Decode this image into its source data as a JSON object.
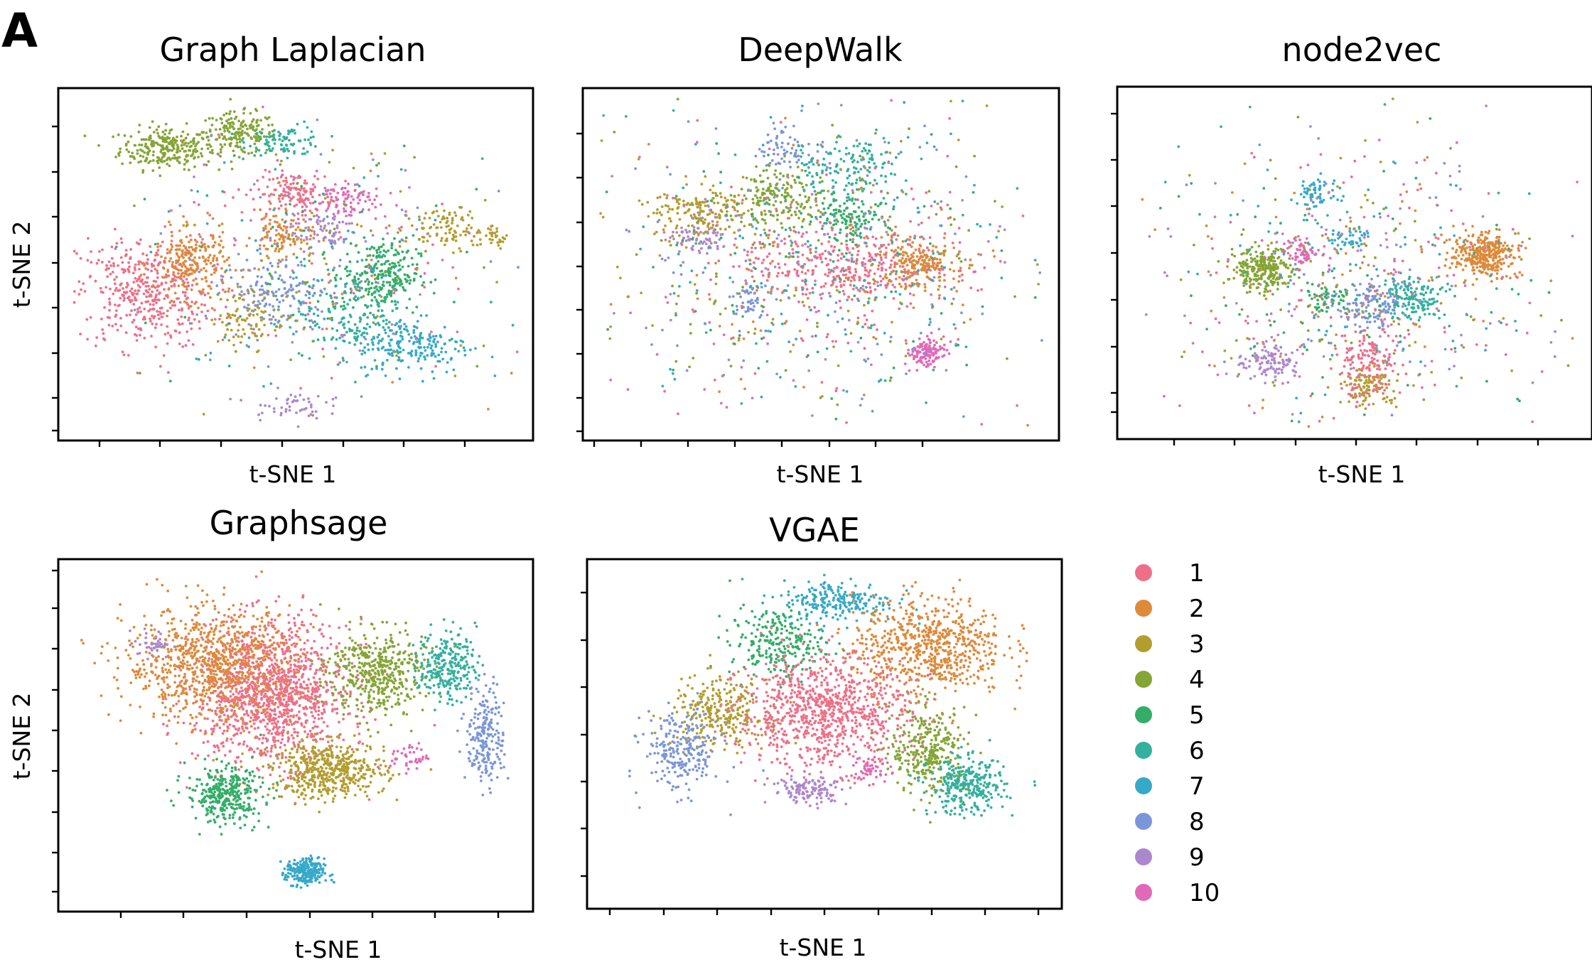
{
  "figure": {
    "panel_letter": "A",
    "legend": {
      "entries": [
        {
          "label": "1",
          "color": "#ee7088"
        },
        {
          "label": "2",
          "color": "#dd8a3b"
        },
        {
          "label": "3",
          "color": "#b39d2e"
        },
        {
          "label": "4",
          "color": "#85a535"
        },
        {
          "label": "5",
          "color": "#34ad68"
        },
        {
          "label": "6",
          "color": "#33b09e"
        },
        {
          "label": "7",
          "color": "#36a9c9"
        },
        {
          "label": "8",
          "color": "#7b96d8"
        },
        {
          "label": "9",
          "color": "#ad87cd"
        },
        {
          "label": "10",
          "color": "#e06ab8"
        }
      ]
    }
  },
  "chart_data": [
    {
      "type": "scatter",
      "title": "Graph Laplacian",
      "xlabel": "t-SNE 1",
      "ylabel": "t-SNE 2",
      "xlim": [
        0,
        100
      ],
      "ylim": [
        0,
        100
      ],
      "tick_count_x": 7,
      "tick_count_y": 8,
      "clusters": [
        {
          "class": 4,
          "x": 23,
          "y": 83,
          "sx": 5,
          "sy": 3,
          "n": 260
        },
        {
          "class": 4,
          "x": 38,
          "y": 87,
          "sx": 4,
          "sy": 3,
          "n": 180
        },
        {
          "class": 6,
          "x": 48,
          "y": 85,
          "sx": 4,
          "sy": 2,
          "n": 90
        },
        {
          "class": 1,
          "x": 18,
          "y": 42,
          "sx": 7,
          "sy": 8,
          "n": 420
        },
        {
          "class": 1,
          "x": 50,
          "y": 70,
          "sx": 4,
          "sy": 3,
          "n": 140
        },
        {
          "class": 2,
          "x": 28,
          "y": 50,
          "sx": 4,
          "sy": 5,
          "n": 230
        },
        {
          "class": 2,
          "x": 47,
          "y": 58,
          "sx": 3,
          "sy": 3,
          "n": 90
        },
        {
          "class": 5,
          "x": 68,
          "y": 47,
          "sx": 4,
          "sy": 5,
          "n": 260
        },
        {
          "class": 7,
          "x": 75,
          "y": 27,
          "sx": 6,
          "sy": 4,
          "n": 190
        },
        {
          "class": 8,
          "x": 45,
          "y": 42,
          "sx": 5,
          "sy": 5,
          "n": 150
        },
        {
          "class": 3,
          "x": 82,
          "y": 60,
          "sx": 5,
          "sy": 3,
          "n": 110
        },
        {
          "class": 3,
          "x": 93,
          "y": 57,
          "sx": 1,
          "sy": 1,
          "n": 18
        },
        {
          "class": 10,
          "x": 60,
          "y": 68,
          "sx": 4,
          "sy": 3,
          "n": 90
        },
        {
          "class": 9,
          "x": 55,
          "y": 60,
          "sx": 4,
          "sy": 3,
          "n": 70
        },
        {
          "class": 6,
          "x": 62,
          "y": 35,
          "sx": 6,
          "sy": 6,
          "n": 160
        },
        {
          "class": 3,
          "x": 40,
          "y": 35,
          "sx": 4,
          "sy": 4,
          "n": 80
        },
        {
          "class": 9,
          "x": 48,
          "y": 10,
          "sx": 4,
          "sy": 2,
          "n": 50
        },
        {
          "class": 0,
          "x": 55,
          "y": 50,
          "sx": 18,
          "sy": 18,
          "n": 420
        }
      ]
    },
    {
      "type": "scatter",
      "title": "DeepWalk",
      "xlabel": "t-SNE 1",
      "ylabel": "",
      "xlim": [
        0,
        100
      ],
      "ylim": [
        0,
        100
      ],
      "tick_count_x": 8,
      "tick_count_y": 8,
      "clusters": [
        {
          "class": 2,
          "x": 70,
          "y": 50,
          "sx": 4,
          "sy": 3,
          "n": 200
        },
        {
          "class": 10,
          "x": 72,
          "y": 25,
          "sx": 2,
          "sy": 2,
          "n": 130
        },
        {
          "class": 3,
          "x": 24,
          "y": 65,
          "sx": 5,
          "sy": 4,
          "n": 170
        },
        {
          "class": 9,
          "x": 25,
          "y": 58,
          "sx": 3,
          "sy": 3,
          "n": 70
        },
        {
          "class": 4,
          "x": 41,
          "y": 69,
          "sx": 5,
          "sy": 4,
          "n": 170
        },
        {
          "class": 8,
          "x": 42,
          "y": 82,
          "sx": 3,
          "sy": 3,
          "n": 60
        },
        {
          "class": 6,
          "x": 56,
          "y": 78,
          "sx": 5,
          "sy": 4,
          "n": 140
        },
        {
          "class": 5,
          "x": 56,
          "y": 63,
          "sx": 4,
          "sy": 3,
          "n": 120
        },
        {
          "class": 1,
          "x": 54,
          "y": 50,
          "sx": 10,
          "sy": 5,
          "n": 300
        },
        {
          "class": 8,
          "x": 35,
          "y": 40,
          "sx": 3,
          "sy": 3,
          "n": 50
        },
        {
          "class": 0,
          "x": 50,
          "y": 50,
          "sx": 22,
          "sy": 20,
          "n": 900
        }
      ]
    },
    {
      "type": "scatter",
      "title": "node2vec",
      "xlabel": "t-SNE 1",
      "ylabel": "",
      "xlim": [
        0,
        100
      ],
      "ylim": [
        0,
        100
      ],
      "tick_count_x": 8,
      "tick_count_y": 8,
      "clusters": [
        {
          "class": 2,
          "x": 77,
          "y": 52,
          "sx": 3,
          "sy": 3,
          "n": 340
        },
        {
          "class": 4,
          "x": 31,
          "y": 48,
          "sx": 3,
          "sy": 3,
          "n": 260
        },
        {
          "class": 7,
          "x": 42,
          "y": 70,
          "sx": 2,
          "sy": 2,
          "n": 60
        },
        {
          "class": 7,
          "x": 49,
          "y": 57,
          "sx": 2,
          "sy": 2,
          "n": 40
        },
        {
          "class": 10,
          "x": 39,
          "y": 53,
          "sx": 2,
          "sy": 2,
          "n": 70
        },
        {
          "class": 6,
          "x": 62,
          "y": 40,
          "sx": 3,
          "sy": 3,
          "n": 160
        },
        {
          "class": 8,
          "x": 54,
          "y": 38,
          "sx": 3,
          "sy": 3,
          "n": 110
        },
        {
          "class": 9,
          "x": 32,
          "y": 22,
          "sx": 3,
          "sy": 3,
          "n": 110
        },
        {
          "class": 3,
          "x": 53,
          "y": 15,
          "sx": 3,
          "sy": 3,
          "n": 110
        },
        {
          "class": 1,
          "x": 53,
          "y": 22,
          "sx": 3,
          "sy": 5,
          "n": 150
        },
        {
          "class": 5,
          "x": 45,
          "y": 40,
          "sx": 3,
          "sy": 3,
          "n": 60
        },
        {
          "class": 0,
          "x": 50,
          "y": 45,
          "sx": 20,
          "sy": 20,
          "n": 650
        }
      ]
    },
    {
      "type": "scatter",
      "title": "Graphsage",
      "xlabel": "t-SNE 1",
      "ylabel": "t-SNE 2",
      "xlim": [
        0,
        100
      ],
      "ylim": [
        0,
        100
      ],
      "tick_count_x": 7,
      "tick_count_y": 8,
      "clusters": [
        {
          "class": 1,
          "x": 45,
          "y": 62,
          "sx": 8,
          "sy": 10,
          "n": 1300
        },
        {
          "class": 2,
          "x": 32,
          "y": 70,
          "sx": 9,
          "sy": 8,
          "n": 850
        },
        {
          "class": 3,
          "x": 57,
          "y": 40,
          "sx": 6,
          "sy": 4,
          "n": 500
        },
        {
          "class": 4,
          "x": 67,
          "y": 68,
          "sx": 5,
          "sy": 6,
          "n": 450
        },
        {
          "class": 5,
          "x": 35,
          "y": 33,
          "sx": 4,
          "sy": 4,
          "n": 340
        },
        {
          "class": 6,
          "x": 82,
          "y": 70,
          "sx": 3,
          "sy": 5,
          "n": 250
        },
        {
          "class": 8,
          "x": 90,
          "y": 50,
          "sx": 2,
          "sy": 7,
          "n": 220
        },
        {
          "class": 7,
          "x": 52,
          "y": 11,
          "sx": 2,
          "sy": 2,
          "n": 240
        },
        {
          "class": 9,
          "x": 20,
          "y": 76,
          "sx": 2,
          "sy": 2,
          "n": 40
        },
        {
          "class": 10,
          "x": 74,
          "y": 44,
          "sx": 2,
          "sy": 2,
          "n": 40
        }
      ]
    },
    {
      "type": "scatter",
      "title": "VGAE",
      "xlabel": "t-SNE 1",
      "ylabel": "",
      "xlim": [
        0,
        100
      ],
      "ylim": [
        0,
        100
      ],
      "tick_count_x": 9,
      "tick_count_y": 8,
      "clusters": [
        {
          "class": 7,
          "x": 53,
          "y": 88,
          "sx": 6,
          "sy": 3,
          "n": 230
        },
        {
          "class": 5,
          "x": 40,
          "y": 76,
          "sx": 5,
          "sy": 5,
          "n": 250
        },
        {
          "class": 2,
          "x": 72,
          "y": 75,
          "sx": 8,
          "sy": 7,
          "n": 680
        },
        {
          "class": 3,
          "x": 28,
          "y": 56,
          "sx": 5,
          "sy": 5,
          "n": 280
        },
        {
          "class": 8,
          "x": 20,
          "y": 45,
          "sx": 4,
          "sy": 6,
          "n": 240
        },
        {
          "class": 1,
          "x": 50,
          "y": 56,
          "sx": 9,
          "sy": 8,
          "n": 900
        },
        {
          "class": 9,
          "x": 47,
          "y": 34,
          "sx": 4,
          "sy": 2,
          "n": 120
        },
        {
          "class": 4,
          "x": 72,
          "y": 45,
          "sx": 4,
          "sy": 6,
          "n": 320
        },
        {
          "class": 6,
          "x": 80,
          "y": 35,
          "sx": 4,
          "sy": 4,
          "n": 300
        },
        {
          "class": 10,
          "x": 60,
          "y": 40,
          "sx": 2,
          "sy": 2,
          "n": 40
        }
      ]
    }
  ]
}
